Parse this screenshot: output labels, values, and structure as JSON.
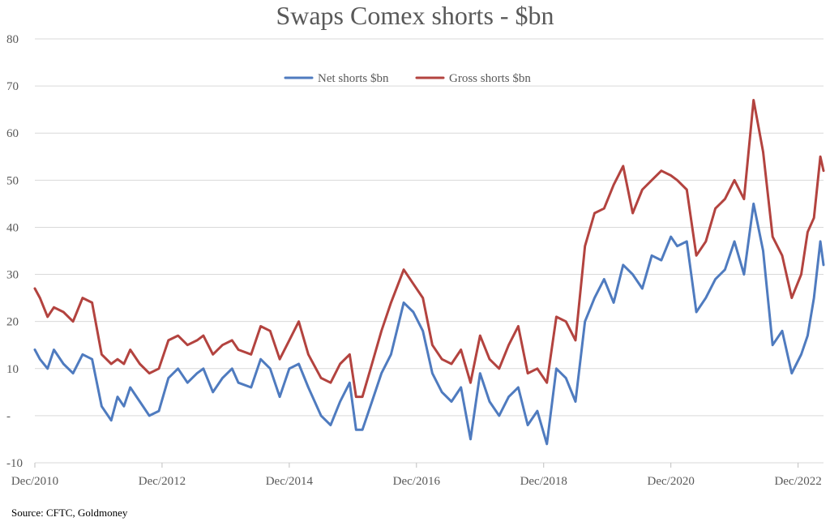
{
  "title": "Swaps Comex shorts - $bn",
  "source": "Source: CFTC, Goldmoney",
  "colors": {
    "net": "#4f7bbf",
    "gross": "#b3433f",
    "grid": "#d9d9d9",
    "text": "#595959"
  },
  "chart_data": {
    "type": "line",
    "title": "Swaps Comex shorts - $bn",
    "xlabel": "",
    "ylabel": "",
    "x_unit": "years since Dec 2010",
    "xlim": [
      0,
      12.4
    ],
    "ylim": [
      -10,
      80
    ],
    "y_ticks": [
      -10,
      0,
      10,
      20,
      30,
      40,
      50,
      60,
      70,
      80
    ],
    "y_tick_labels": [
      "-10",
      "-",
      "10",
      "20",
      "30",
      "40",
      "50",
      "60",
      "70",
      "80"
    ],
    "x_ticks": [
      0,
      2,
      4,
      6,
      8,
      10,
      12
    ],
    "x_tick_labels": [
      "Dec/2010",
      "Dec/2012",
      "Dec/2014",
      "Dec/2016",
      "Dec/2018",
      "Dec/2020",
      "Dec/2022"
    ],
    "grid": true,
    "legend_position": "top-center",
    "series": [
      {
        "name": "Net shorts $bn",
        "color": "#4f7bbf",
        "x": [
          0,
          0.08,
          0.2,
          0.3,
          0.45,
          0.6,
          0.75,
          0.9,
          1.05,
          1.2,
          1.3,
          1.4,
          1.5,
          1.65,
          1.8,
          1.95,
          2.1,
          2.25,
          2.4,
          2.55,
          2.65,
          2.8,
          2.95,
          3.1,
          3.2,
          3.4,
          3.55,
          3.7,
          3.85,
          4.0,
          4.15,
          4.3,
          4.5,
          4.65,
          4.8,
          4.95,
          5.05,
          5.15,
          5.3,
          5.45,
          5.6,
          5.8,
          5.95,
          6.1,
          6.25,
          6.4,
          6.55,
          6.7,
          6.85,
          7.0,
          7.15,
          7.3,
          7.45,
          7.6,
          7.75,
          7.9,
          8.05,
          8.2,
          8.35,
          8.5,
          8.65,
          8.8,
          8.95,
          9.1,
          9.25,
          9.4,
          9.55,
          9.7,
          9.85,
          10.0,
          10.1,
          10.25,
          10.4,
          10.55,
          10.7,
          10.85,
          11.0,
          11.15,
          11.3,
          11.45,
          11.6,
          11.75,
          11.9,
          12.05,
          12.15,
          12.25,
          12.35,
          12.4
        ],
        "y": [
          14,
          12,
          10,
          14,
          11,
          9,
          13,
          12,
          2,
          -1,
          4,
          2,
          6,
          3,
          0,
          1,
          8,
          10,
          7,
          9,
          10,
          5,
          8,
          10,
          7,
          6,
          12,
          10,
          4,
          10,
          11,
          6,
          0,
          -2,
          3,
          7,
          -3,
          -3,
          3,
          9,
          13,
          24,
          22,
          18,
          9,
          5,
          3,
          6,
          -5,
          9,
          3,
          0,
          4,
          6,
          -2,
          1,
          -6,
          10,
          8,
          3,
          20,
          25,
          29,
          24,
          32,
          30,
          27,
          34,
          33,
          38,
          36,
          37,
          22,
          25,
          29,
          31,
          37,
          30,
          45,
          35,
          15,
          18,
          9,
          13,
          17,
          25,
          37,
          32
        ]
      },
      {
        "name": "Gross shorts $bn",
        "color": "#b3433f",
        "x": [
          0,
          0.08,
          0.2,
          0.3,
          0.45,
          0.6,
          0.75,
          0.9,
          1.05,
          1.2,
          1.3,
          1.4,
          1.5,
          1.65,
          1.8,
          1.95,
          2.1,
          2.25,
          2.4,
          2.55,
          2.65,
          2.8,
          2.95,
          3.1,
          3.2,
          3.4,
          3.55,
          3.7,
          3.85,
          4.0,
          4.15,
          4.3,
          4.5,
          4.65,
          4.8,
          4.95,
          5.05,
          5.15,
          5.3,
          5.45,
          5.6,
          5.8,
          5.95,
          6.1,
          6.25,
          6.4,
          6.55,
          6.7,
          6.85,
          7.0,
          7.15,
          7.3,
          7.45,
          7.6,
          7.75,
          7.9,
          8.05,
          8.2,
          8.35,
          8.5,
          8.65,
          8.8,
          8.95,
          9.1,
          9.25,
          9.4,
          9.55,
          9.7,
          9.85,
          10.0,
          10.1,
          10.25,
          10.4,
          10.55,
          10.7,
          10.85,
          11.0,
          11.15,
          11.3,
          11.45,
          11.6,
          11.75,
          11.9,
          12.05,
          12.15,
          12.25,
          12.35,
          12.4
        ],
        "y": [
          27,
          25,
          21,
          23,
          22,
          20,
          25,
          24,
          13,
          11,
          12,
          11,
          14,
          11,
          9,
          10,
          16,
          17,
          15,
          16,
          17,
          13,
          15,
          16,
          14,
          13,
          19,
          18,
          12,
          16,
          20,
          13,
          8,
          7,
          11,
          13,
          4,
          4,
          11,
          18,
          24,
          31,
          28,
          25,
          15,
          12,
          11,
          14,
          7,
          17,
          12,
          10,
          15,
          19,
          9,
          10,
          7,
          21,
          20,
          16,
          36,
          43,
          44,
          49,
          53,
          43,
          48,
          50,
          52,
          51,
          50,
          48,
          34,
          37,
          44,
          46,
          50,
          46,
          67,
          56,
          38,
          34,
          25,
          30,
          39,
          42,
          55,
          52
        ]
      }
    ]
  }
}
